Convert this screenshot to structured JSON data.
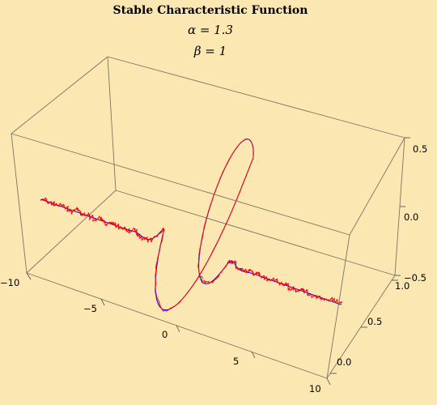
{
  "chart_data": {
    "type": "line",
    "plot_style": "3d-parametric-curve",
    "title": "Stable Characteristic Function",
    "params": [
      {
        "symbol": "α",
        "value": "1.3",
        "label": "α = 1.3"
      },
      {
        "symbol": "β",
        "value": "1",
        "label": "β = 1"
      }
    ],
    "axes": {
      "x": {
        "range": [
          -10,
          10
        ],
        "ticks": [
          -10,
          -5,
          0,
          5,
          10
        ],
        "tick_labels": [
          "−10",
          "−5",
          "0",
          "5",
          "10"
        ]
      },
      "y": {
        "range": [
          -0.05,
          1.05
        ],
        "ticks": [
          0.0,
          0.5,
          1.0
        ],
        "tick_labels": [
          "0.0",
          "0.5",
          "1.0"
        ]
      },
      "z": {
        "range": [
          -0.5,
          0.5
        ],
        "ticks": [
          -0.5,
          0.0,
          0.5
        ],
        "tick_labels": [
          "−0.5",
          "0.0",
          "0.5"
        ]
      }
    },
    "grid": false,
    "series": [
      {
        "color": "#0000ff",
        "description": "theoretical characteristic function (smooth)"
      },
      {
        "color": "#ff0000",
        "description": "empirical characteristic function (noisy)"
      }
    ]
  }
}
